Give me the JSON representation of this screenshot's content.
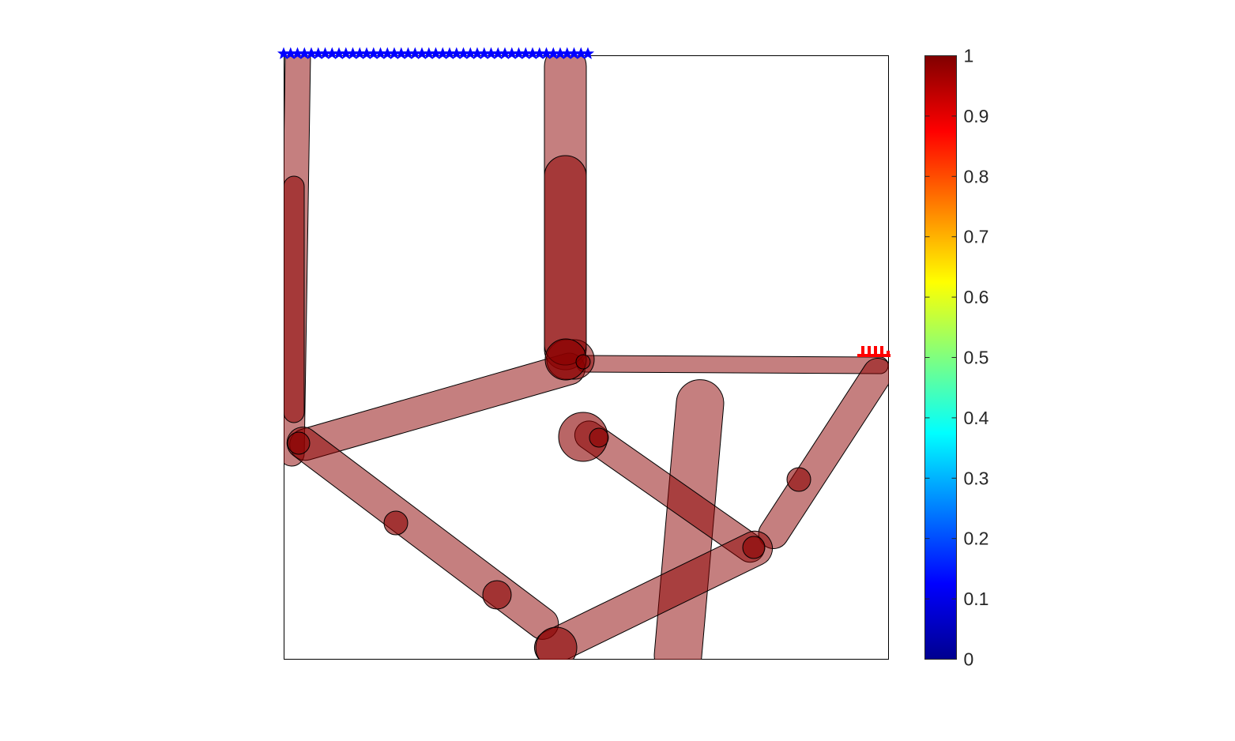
{
  "figure": {
    "type": "topology-optimization-structure",
    "domain_box": "unit square design domain",
    "member_color": "#8b0000",
    "member_opacity_light": 0.5,
    "member_opacity_dark": 0.75,
    "support_color": "#0000ff",
    "load_color": "#ff0000",
    "support_label": "fixed support (top edge, left half)",
    "load_label": "applied load (right edge, middle)"
  },
  "colorbar": {
    "colormap": "jet",
    "min": 0,
    "max": 1,
    "ticks": [
      "0",
      "0.1",
      "0.2",
      "0.3",
      "0.4",
      "0.5",
      "0.6",
      "0.7",
      "0.8",
      "0.9",
      "1"
    ]
  }
}
